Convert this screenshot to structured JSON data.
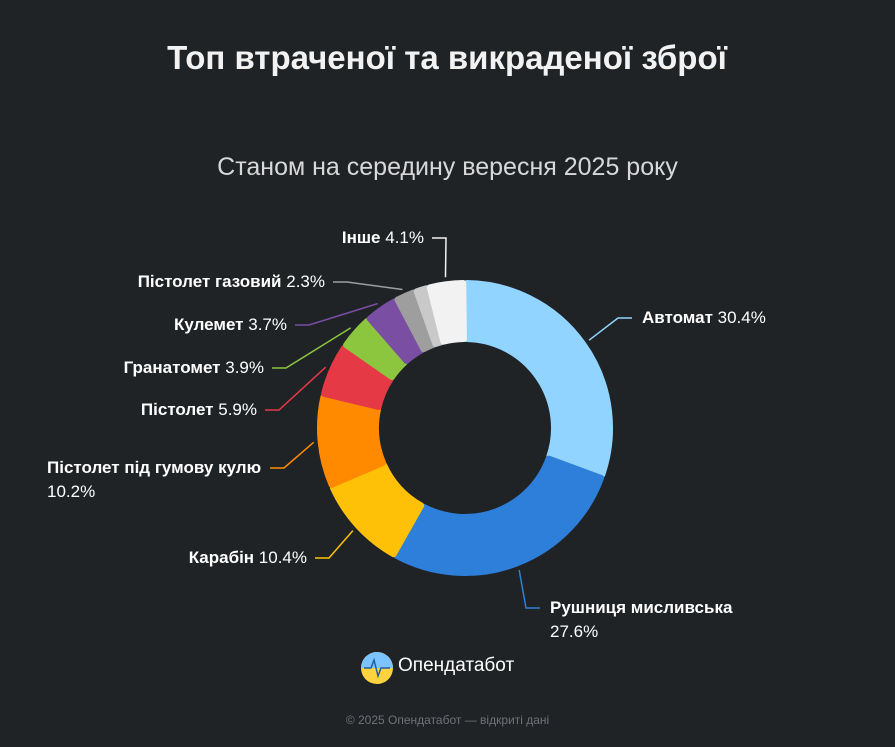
{
  "chart_data": {
    "type": "donut",
    "title": "Топ втраченої та викраденої зброї",
    "subtitle": "Станом на середину вересня 2025 року",
    "categories": [
      "Автомат",
      "Рушниця мисливська",
      "Карабін",
      "Пістолет під гумову кулю",
      "Пістолет",
      "Гранатомет",
      "Кулемет",
      "Пістолет газовий",
      null,
      "Інше"
    ],
    "values": [
      30.4,
      27.6,
      10.4,
      10.2,
      5.9,
      3.9,
      3.7,
      2.3,
      1.5,
      4.1
    ],
    "value_labels": [
      "30.4%",
      "27.6%",
      "10.4%",
      "10.2%",
      "5.9%",
      "3.9%",
      "3.7%",
      "2.3%",
      null,
      "4.1%"
    ],
    "colors": [
      "#90d4ff",
      "#2e7fd9",
      "#ffc107",
      "#ff8a00",
      "#e63946",
      "#8cc63f",
      "#7a4ea3",
      "#9e9e9e",
      "#c9c9c9",
      "#f2f2f2"
    ]
  },
  "brand": "Опендатабот",
  "footer": "© 2025 Опендатабот — відкриті дані"
}
